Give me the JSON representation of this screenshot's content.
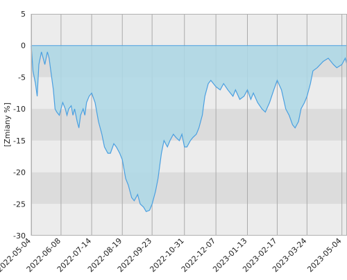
{
  "chart_data": {
    "type": "area",
    "title": "",
    "xlabel": "",
    "ylabel": "[Zmiany %]",
    "ylim": [
      -30,
      5
    ],
    "yticks": [
      5,
      0,
      -5,
      -10,
      -15,
      -20,
      -25,
      -30
    ],
    "grid": true,
    "baseline": 0,
    "xlim": [
      "2022-05-04",
      "2023-05-10"
    ],
    "x_tick_labels": [
      "2022-05-04",
      "2022-06-08",
      "2022-07-14",
      "2022-08-19",
      "2022-09-23",
      "2022-10-31",
      "2022-12-07",
      "2023-01-13",
      "2023-02-17",
      "2023-03-24",
      "2023-05-04"
    ],
    "x": [
      "2022-05-04",
      "2022-05-06",
      "2022-05-09",
      "2022-05-11",
      "2022-05-13",
      "2022-05-16",
      "2022-05-18",
      "2022-05-20",
      "2022-05-23",
      "2022-05-25",
      "2022-05-27",
      "2022-05-30",
      "2022-06-01",
      "2022-06-03",
      "2022-06-06",
      "2022-06-08",
      "2022-06-10",
      "2022-06-13",
      "2022-06-15",
      "2022-06-17",
      "2022-06-20",
      "2022-06-22",
      "2022-06-24",
      "2022-06-27",
      "2022-06-29",
      "2022-07-01",
      "2022-07-04",
      "2022-07-06",
      "2022-07-08",
      "2022-07-11",
      "2022-07-14",
      "2022-07-18",
      "2022-07-22",
      "2022-07-26",
      "2022-07-29",
      "2022-08-02",
      "2022-08-05",
      "2022-08-09",
      "2022-08-12",
      "2022-08-16",
      "2022-08-19",
      "2022-08-23",
      "2022-08-26",
      "2022-08-30",
      "2022-09-02",
      "2022-09-06",
      "2022-09-09",
      "2022-09-13",
      "2022-09-16",
      "2022-09-20",
      "2022-09-23",
      "2022-09-27",
      "2022-09-30",
      "2022-10-04",
      "2022-10-07",
      "2022-10-11",
      "2022-10-14",
      "2022-10-18",
      "2022-10-21",
      "2022-10-25",
      "2022-10-28",
      "2022-10-31",
      "2022-11-03",
      "2022-11-07",
      "2022-11-10",
      "2022-11-14",
      "2022-11-17",
      "2022-11-21",
      "2022-11-24",
      "2022-11-28",
      "2022-12-01",
      "2022-12-07",
      "2022-12-12",
      "2022-12-16",
      "2022-12-21",
      "2022-12-27",
      "2022-12-30",
      "2023-01-04",
      "2023-01-09",
      "2023-01-13",
      "2023-01-17",
      "2023-01-20",
      "2023-01-25",
      "2023-01-30",
      "2023-02-03",
      "2023-02-08",
      "2023-02-13",
      "2023-02-17",
      "2023-02-22",
      "2023-02-27",
      "2023-03-03",
      "2023-03-07",
      "2023-03-10",
      "2023-03-14",
      "2023-03-17",
      "2023-03-21",
      "2023-03-24",
      "2023-03-28",
      "2023-03-31",
      "2023-04-05",
      "2023-04-12",
      "2023-04-18",
      "2023-04-24",
      "2023-04-28",
      "2023-05-04",
      "2023-05-08",
      "2023-05-10"
    ],
    "series": [
      {
        "color": "#4a9fe0",
        "fill": "#add8e6",
        "values": [
          0,
          -4,
          -6,
          -8,
          -3,
          -1,
          -2,
          -3,
          -1,
          -2,
          -4,
          -7,
          -10,
          -10.5,
          -11,
          -10,
          -9,
          -10,
          -11,
          -10,
          -9.5,
          -11,
          -10,
          -12,
          -13,
          -11,
          -10,
          -11,
          -9,
          -8,
          -7.5,
          -9,
          -12,
          -14,
          -16,
          -17,
          -17,
          -15.5,
          -16,
          -17,
          -18,
          -21,
          -22,
          -24,
          -24.5,
          -23.5,
          -25,
          -25.5,
          -26.2,
          -26,
          -25,
          -23,
          -21,
          -17,
          -15,
          -16,
          -15,
          -14,
          -14.5,
          -15,
          -14,
          -16,
          -16,
          -15,
          -14.5,
          -14,
          -13,
          -11,
          -8,
          -6,
          -5.5,
          -6.5,
          -7,
          -6,
          -7,
          -8,
          -7,
          -8.5,
          -8,
          -7,
          -8.5,
          -7.5,
          -9,
          -10,
          -10.5,
          -9,
          -7,
          -5.5,
          -7,
          -10,
          -11,
          -12.5,
          -13,
          -12,
          -10,
          -9,
          -8,
          -6,
          -4,
          -3.5,
          -2.5,
          -2,
          -3,
          -3.5,
          -3,
          -2,
          -3
        ]
      }
    ]
  }
}
